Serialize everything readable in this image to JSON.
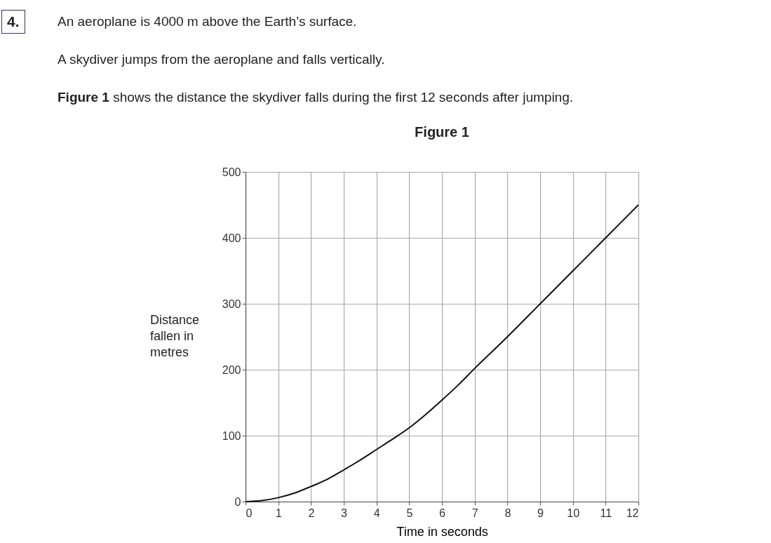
{
  "chart_data": {
    "type": "line",
    "title": "Figure 1",
    "xlabel": "Time in seconds",
    "ylabel": "Distance fallen in metres",
    "annotations": [
      "4.",
      "An aeroplane is 4000 m above the Earth’s surface.",
      "A skydiver jumps from the aeroplane and falls vertically.",
      "Figure 1 shows the distance the skydiver falls during the first 12 seconds after jumping."
    ],
    "x": [
      0,
      0.5,
      1,
      1.5,
      2,
      2.5,
      3,
      3.5,
      4,
      4.5,
      5,
      5.5,
      6,
      6.5,
      7,
      8,
      9,
      10,
      11,
      12
    ],
    "series": [
      {
        "color": "#111111",
        "values": [
          0,
          1.5,
          6,
          13,
          23,
          34,
          48,
          63,
          79,
          95,
          112,
          132,
          154,
          177,
          202,
          250,
          300,
          350,
          400,
          450
        ]
      }
    ],
    "xlim": [
      0,
      12
    ],
    "xticks": [
      0,
      1,
      2,
      3,
      4,
      5,
      6,
      7,
      8,
      9,
      10,
      11,
      12
    ],
    "ylim": [
      0,
      500
    ],
    "yticks": [
      0,
      100,
      200,
      300,
      400,
      500
    ],
    "grid": true,
    "legend": false,
    "marker": "none",
    "line_style": "solid"
  }
}
